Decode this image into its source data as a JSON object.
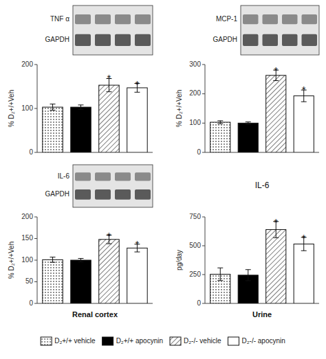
{
  "chart_data": [
    {
      "type": "bar",
      "ylabel": "% D₂+/+Veh",
      "categories": [
        "D₂+/+ vehicle",
        "D₂+/+ apocynin",
        "D₂-/- vehicle",
        "D₂-/- apocynin"
      ],
      "values": [
        103,
        103,
        153,
        147
      ],
      "errors": [
        7,
        5,
        15,
        10
      ],
      "colors": [
        "white",
        "black",
        "white",
        "white"
      ],
      "ylim": [
        0,
        200
      ],
      "yticks": [
        0,
        100,
        200
      ],
      "tick_labels": "y",
      "annotations": [
        {
          "text": "*",
          "x": "D₂-/- vehicle",
          "y": 173
        },
        {
          "text": "*",
          "x": "D₂-/- apocynin",
          "y": 160
        }
      ],
      "blot_labels": [
        "TNF α",
        "GAPDH"
      ]
    },
    {
      "type": "bar",
      "ylabel": "% D₂+/+Veh",
      "categories": [
        "D₂+/+ vehicle",
        "D₂+/+ apocynin",
        "D₂-/- vehicle",
        "D₂-/- apocynin"
      ],
      "values": [
        103,
        100,
        263,
        193
      ],
      "errors": [
        5,
        4,
        18,
        20
      ],
      "colors": [
        "white",
        "black",
        "white",
        "white"
      ],
      "ylim": [
        0,
        300
      ],
      "yticks": [
        0,
        100,
        200,
        300
      ],
      "tick_labels": "y",
      "annotations": [
        {
          "text": "*",
          "x": "D₂-/- vehicle",
          "y": 287
        },
        {
          "text": "*",
          "x": "D₂-/- apocynin",
          "y": 220
        }
      ],
      "blot_labels": [
        "MCP-1",
        "GAPDH"
      ]
    },
    {
      "type": "bar",
      "ylabel": "% D₂+/+Veh",
      "xlabel": "Renal cortex",
      "categories": [
        "D₂+/+ vehicle",
        "D₂+/+ apocynin",
        "D₂-/- vehicle",
        "D₂-/- apocynin"
      ],
      "values": [
        101,
        100,
        148,
        128
      ],
      "errors": [
        6,
        4,
        10,
        9
      ],
      "colors": [
        "white",
        "black",
        "white",
        "white"
      ],
      "ylim": [
        0,
        200
      ],
      "yticks": [
        0,
        50,
        100,
        150,
        200
      ],
      "tick_labels": "y",
      "annotations": [
        {
          "text": "*",
          "x": "D₂-/- vehicle",
          "y": 161
        },
        {
          "text": "*",
          "x": "D₂-/- apocynin",
          "y": 141
        }
      ],
      "blot_labels": [
        "IL-6",
        "GAPDH"
      ]
    },
    {
      "type": "bar",
      "title": "IL-6",
      "ylabel": "pg/day",
      "xlabel": "Urine",
      "categories": [
        "D₂+/+ vehicle",
        "D₂+/+ apocynin",
        "D₂-/- vehicle",
        "D₂-/- apocynin"
      ],
      "values": [
        253,
        245,
        640,
        515
      ],
      "errors": [
        55,
        48,
        70,
        58
      ],
      "colors": [
        "white",
        "black",
        "white",
        "white"
      ],
      "ylim": [
        0,
        750
      ],
      "yticks": [
        0,
        250,
        500,
        750
      ],
      "tick_labels": "y",
      "annotations": [
        {
          "text": "*",
          "x": "D₂-/- vehicle",
          "y": 720
        },
        {
          "text": "*",
          "x": "D₂-/- apocynin",
          "y": 583
        }
      ],
      "legend": "bottom"
    }
  ]
}
